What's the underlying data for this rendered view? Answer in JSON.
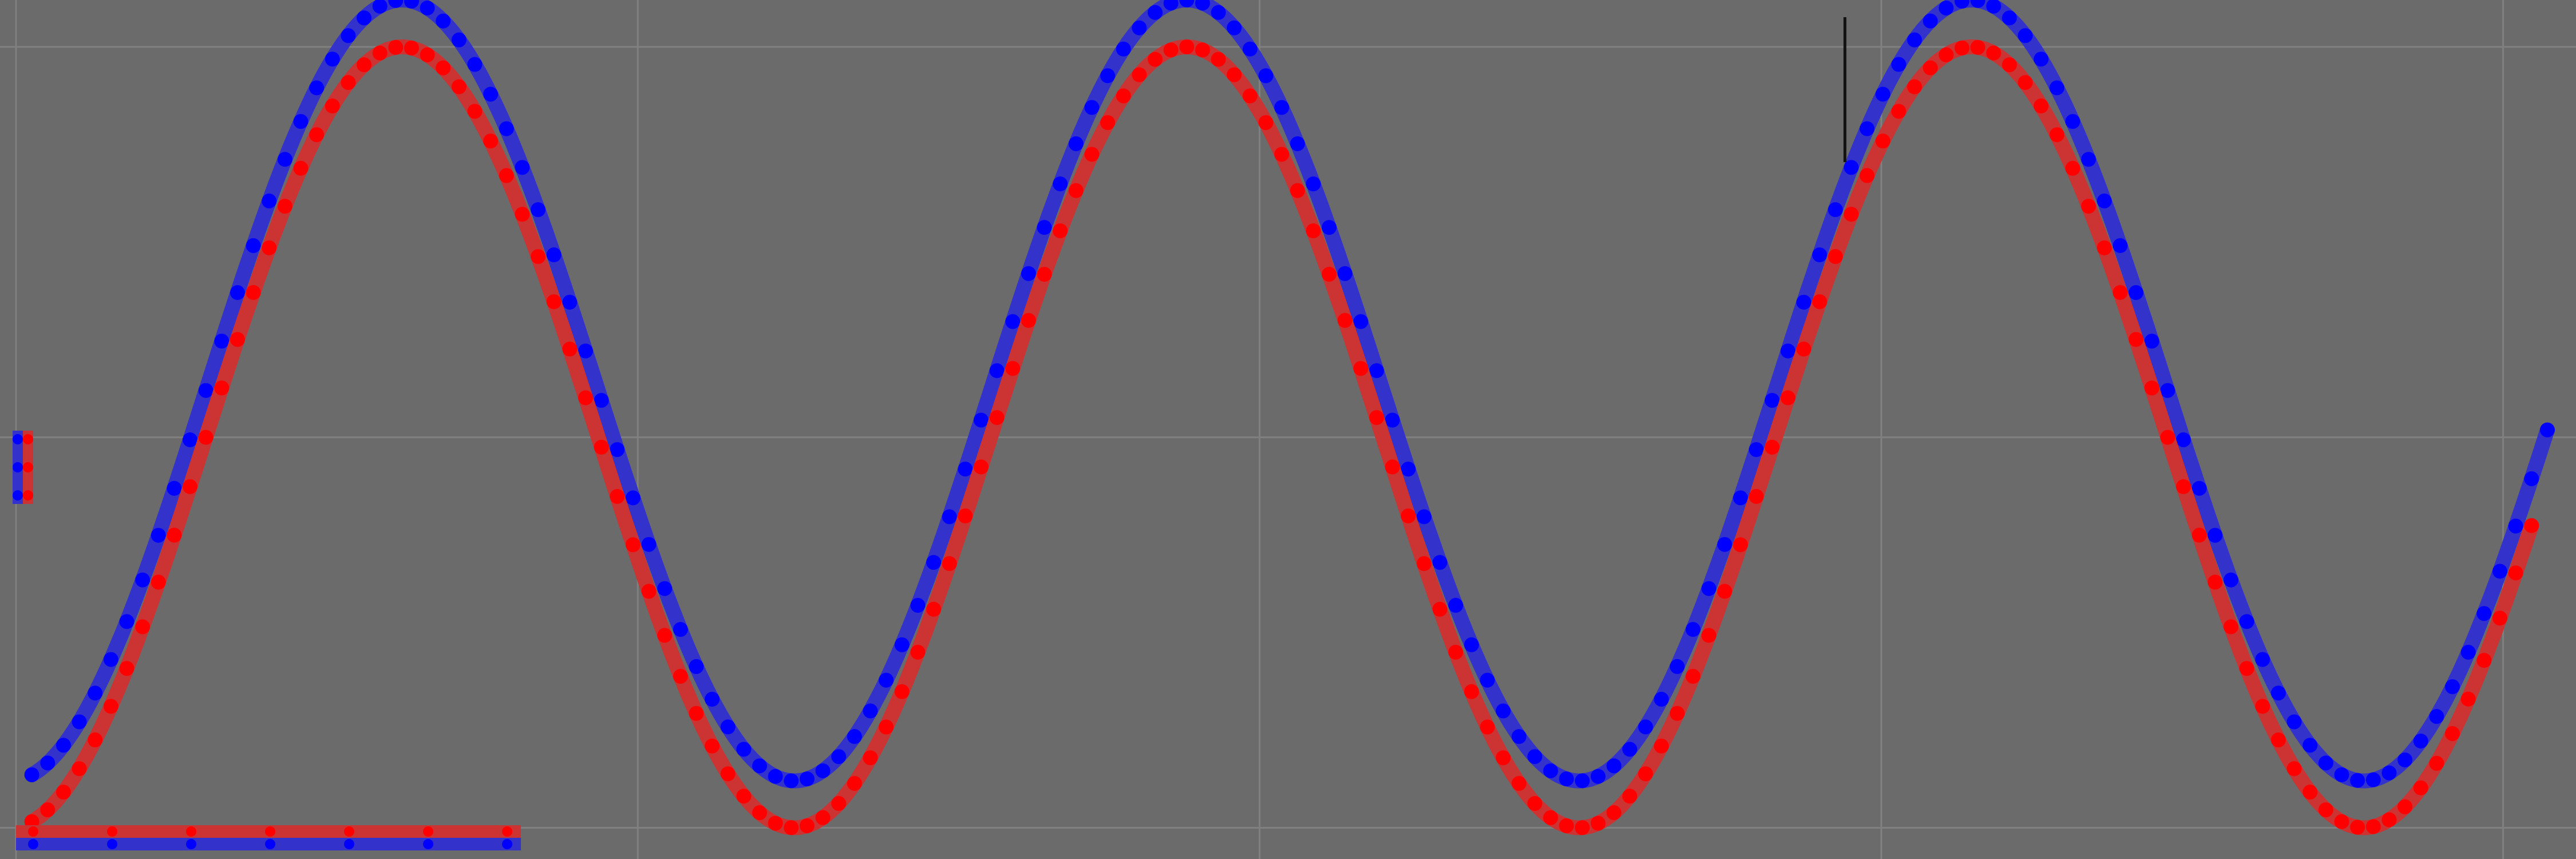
{
  "chart_data": {
    "type": "line",
    "title": "",
    "xlabel": "",
    "ylabel": "",
    "xlim": [
      0,
      160
    ],
    "ylim": [
      -1.08,
      1.12
    ],
    "grid": true,
    "legend": "none",
    "background_color": "#6b6b6b",
    "grid_color": "#808080",
    "marker_size": 13,
    "line_width": 26,
    "series": [
      {
        "color": "#3333cc",
        "marker_color": "#0000ff",
        "amplitude": 1.0,
        "offset": 0.12,
        "period": 49.6,
        "phase_x": 12,
        "x_start": 1,
        "x_end": 160,
        "marker_step": 1
      },
      {
        "color": "#cc3333",
        "marker_color": "#ff0000",
        "amplitude": 1.0,
        "offset": 0.0,
        "period": 49.6,
        "phase_x": 12,
        "x_start": 1,
        "x_end": 159,
        "marker_step": 1
      }
    ],
    "cursor_x": 115.6,
    "cursor_y_range": [
      1.12,
      0.91
    ],
    "legend_swatches": {
      "vertical_stub": {
        "colors": [
          "#3333cc",
          "#cc3333"
        ]
      },
      "horizontal_stub": {
        "colors": [
          "#cc3333",
          "#3333cc"
        ]
      }
    }
  }
}
